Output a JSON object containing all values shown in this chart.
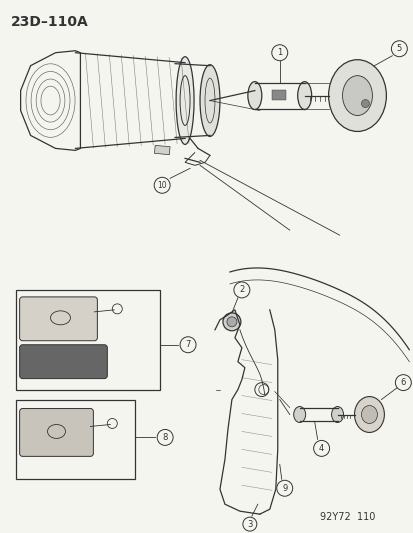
{
  "title": "23D–110A",
  "footer": "92Y72  110",
  "bg_color": "#f5f5f0",
  "title_fontsize": 10,
  "footer_fontsize": 7
}
